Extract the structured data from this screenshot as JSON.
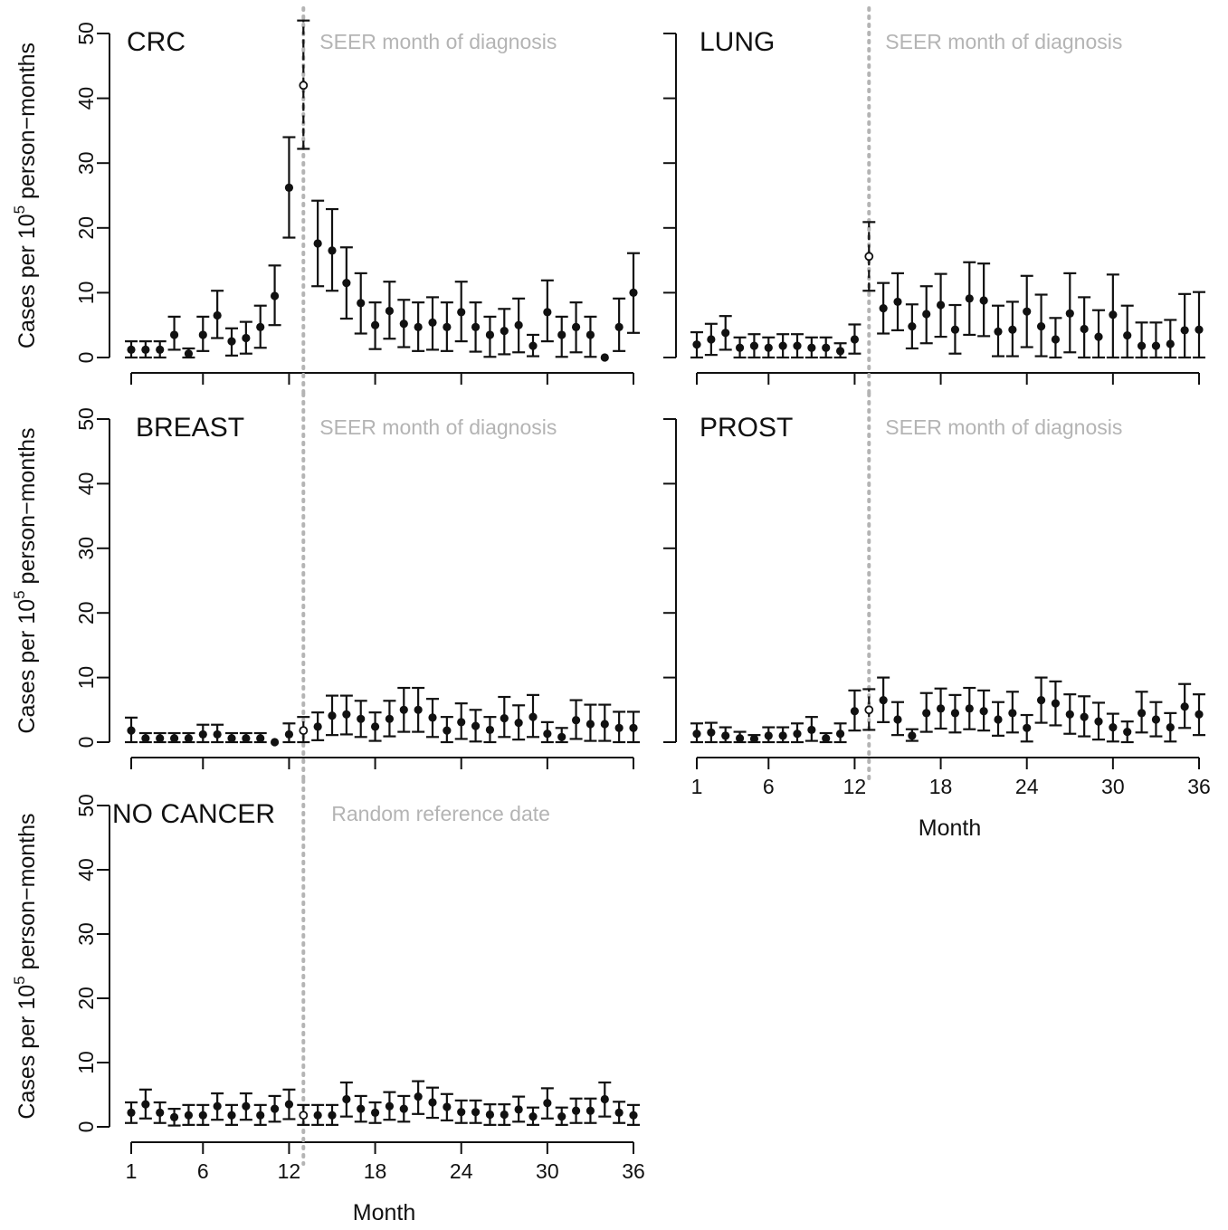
{
  "chart_data": [
    {
      "type": "scatter",
      "title": "CRC",
      "annotation": "SEER month of diagnosis",
      "reference_month": 13,
      "ylabel": "Cases per 10^5 person−months",
      "xlabel": "",
      "show_x_ticklabels": false,
      "ylim": [
        0,
        50
      ],
      "xlim": [
        1,
        36
      ],
      "y_ticks": [
        "0",
        "10",
        "20",
        "30",
        "40",
        "50"
      ],
      "x_ticks": [
        "1",
        "6",
        "12",
        "18",
        "24",
        "30",
        "36"
      ],
      "x": [
        1,
        2,
        3,
        4,
        5,
        6,
        7,
        8,
        9,
        10,
        11,
        12,
        13,
        14,
        15,
        16,
        17,
        18,
        19,
        20,
        21,
        22,
        23,
        24,
        25,
        26,
        27,
        28,
        29,
        30,
        31,
        32,
        33,
        34,
        35,
        36
      ],
      "values": [
        1.2,
        1.2,
        1.2,
        3.5,
        0.6,
        3.5,
        6.5,
        2.5,
        3.0,
        4.7,
        9.5,
        26.2,
        42.0,
        17.6,
        16.5,
        11.5,
        8.4,
        5.0,
        7.2,
        5.2,
        4.7,
        5.4,
        4.7,
        7.0,
        4.7,
        3.5,
        4.1,
        5.0,
        1.8,
        7.0,
        3.5,
        4.7,
        3.5,
        0.0,
        4.7,
        10.0
      ],
      "lower": [
        0.0,
        0.0,
        0.0,
        1.2,
        0.0,
        1.0,
        3.0,
        0.3,
        0.6,
        1.5,
        5.0,
        18.5,
        32.2,
        11.0,
        10.3,
        6.0,
        3.7,
        1.3,
        2.9,
        1.6,
        1.0,
        1.2,
        1.0,
        2.5,
        0.9,
        0.1,
        0.5,
        0.8,
        0.2,
        2.5,
        0.1,
        0.8,
        0.1,
        0.0,
        1.0,
        3.8
      ],
      "upper": [
        2.5,
        2.5,
        2.5,
        6.3,
        1.4,
        6.3,
        10.3,
        4.5,
        5.5,
        8.0,
        14.2,
        34.0,
        52.0,
        24.2,
        22.9,
        17.0,
        13.0,
        8.5,
        11.7,
        8.9,
        8.5,
        9.3,
        8.5,
        11.7,
        8.5,
        6.3,
        7.5,
        9.1,
        3.5,
        11.9,
        6.3,
        8.5,
        6.3,
        0.0,
        9.1,
        16.1
      ]
    },
    {
      "type": "scatter",
      "title": "LUNG",
      "annotation": "SEER month of diagnosis",
      "reference_month": 13,
      "ylabel": "",
      "xlabel": "",
      "show_x_ticklabels": false,
      "ylim": [
        0,
        50
      ],
      "xlim": [
        1,
        36
      ],
      "y_ticks": [
        "0",
        "10",
        "20",
        "30",
        "40",
        "50"
      ],
      "x_ticks": [
        "1",
        "6",
        "12",
        "18",
        "24",
        "30",
        "36"
      ],
      "x": [
        1,
        2,
        3,
        4,
        5,
        6,
        7,
        8,
        9,
        10,
        11,
        12,
        13,
        14,
        15,
        16,
        17,
        18,
        19,
        20,
        21,
        22,
        23,
        24,
        25,
        26,
        27,
        28,
        29,
        30,
        31,
        32,
        33,
        34,
        35,
        36
      ],
      "values": [
        2.0,
        2.8,
        3.8,
        1.5,
        1.8,
        1.5,
        1.8,
        1.8,
        1.5,
        1.5,
        1.0,
        2.8,
        15.6,
        7.6,
        8.6,
        4.8,
        6.7,
        8.1,
        4.3,
        9.1,
        8.8,
        4.0,
        4.3,
        7.1,
        4.8,
        2.8,
        6.8,
        4.4,
        3.2,
        6.6,
        3.4,
        1.8,
        1.8,
        2.1,
        4.2,
        4.3
      ],
      "lower": [
        0.0,
        0.4,
        1.2,
        0.0,
        0.0,
        0.0,
        0.0,
        0.0,
        0.0,
        0.0,
        0.0,
        0.6,
        10.3,
        3.7,
        4.2,
        1.4,
        2.2,
        3.2,
        0.6,
        3.5,
        3.3,
        0.2,
        0.2,
        1.6,
        0.2,
        0.0,
        0.8,
        0.0,
        0.0,
        0.0,
        0.0,
        0.0,
        0.0,
        0.0,
        0.0,
        0.0
      ],
      "upper": [
        3.9,
        5.2,
        6.4,
        3.1,
        3.6,
        3.1,
        3.6,
        3.6,
        3.1,
        3.1,
        2.2,
        5.1,
        20.9,
        11.5,
        13.0,
        8.2,
        11.0,
        12.9,
        8.1,
        14.7,
        14.5,
        8.0,
        8.6,
        12.6,
        9.7,
        6.1,
        13.0,
        9.3,
        7.3,
        12.8,
        8.0,
        5.4,
        5.4,
        5.8,
        9.8,
        10.1
      ]
    },
    {
      "type": "scatter",
      "title": "BREAST",
      "annotation": "SEER month of diagnosis",
      "reference_month": 13,
      "ylabel": "Cases per 10^5 person−months",
      "xlabel": "",
      "show_x_ticklabels": false,
      "ylim": [
        0,
        50
      ],
      "xlim": [
        1,
        36
      ],
      "y_ticks": [
        "0",
        "10",
        "20",
        "30",
        "40",
        "50"
      ],
      "x_ticks": [
        "1",
        "6",
        "12",
        "18",
        "24",
        "30",
        "36"
      ],
      "x": [
        1,
        2,
        3,
        4,
        5,
        6,
        7,
        8,
        9,
        10,
        11,
        12,
        13,
        14,
        15,
        16,
        17,
        18,
        19,
        20,
        21,
        22,
        23,
        24,
        25,
        26,
        27,
        28,
        29,
        30,
        31,
        32,
        33,
        34,
        35,
        36
      ],
      "values": [
        1.8,
        0.6,
        0.6,
        0.6,
        0.6,
        1.2,
        1.2,
        0.6,
        0.6,
        0.6,
        0.0,
        1.2,
        1.8,
        2.4,
        4.1,
        4.3,
        3.6,
        2.4,
        3.6,
        5.0,
        5.0,
        3.8,
        1.8,
        3.1,
        2.5,
        1.9,
        3.7,
        3.0,
        3.9,
        1.3,
        0.8,
        3.4,
        2.8,
        2.8,
        2.2,
        2.2
      ],
      "lower": [
        0.0,
        0.0,
        0.0,
        0.0,
        0.0,
        0.0,
        0.0,
        0.0,
        0.0,
        0.0,
        0.0,
        0.0,
        0.0,
        0.3,
        1.1,
        1.2,
        0.8,
        0.2,
        0.9,
        1.6,
        1.6,
        0.8,
        0.0,
        0.5,
        0.1,
        0.0,
        0.8,
        0.4,
        0.8,
        0.0,
        0.0,
        0.5,
        0.2,
        0.2,
        0.0,
        0.0
      ],
      "upper": [
        3.8,
        1.4,
        1.4,
        1.4,
        1.4,
        2.7,
        2.7,
        1.4,
        1.4,
        1.4,
        0.0,
        2.9,
        3.9,
        4.6,
        7.2,
        7.2,
        6.4,
        4.6,
        6.4,
        8.4,
        8.4,
        6.7,
        3.9,
        6.0,
        5.0,
        3.9,
        7.0,
        5.7,
        7.3,
        3.1,
        2.2,
        6.5,
        5.8,
        5.8,
        4.7,
        4.7
      ]
    },
    {
      "type": "scatter",
      "title": "PROST",
      "annotation": "SEER month of diagnosis",
      "reference_month": 13,
      "ylabel": "",
      "xlabel": "Month",
      "show_x_ticklabels": true,
      "ylim": [
        0,
        50
      ],
      "xlim": [
        1,
        36
      ],
      "y_ticks": [
        "0",
        "10",
        "20",
        "30",
        "40",
        "50"
      ],
      "x_ticks": [
        "1",
        "6",
        "12",
        "18",
        "24",
        "30",
        "36"
      ],
      "x": [
        1,
        2,
        3,
        4,
        5,
        6,
        7,
        8,
        9,
        10,
        11,
        12,
        13,
        14,
        15,
        16,
        17,
        18,
        19,
        20,
        21,
        22,
        23,
        24,
        25,
        26,
        27,
        28,
        29,
        30,
        31,
        32,
        33,
        34,
        35,
        36
      ],
      "values": [
        1.3,
        1.5,
        1.0,
        0.6,
        0.5,
        1.0,
        1.0,
        1.3,
        1.9,
        0.6,
        1.3,
        4.8,
        5.0,
        6.5,
        3.5,
        1.0,
        4.5,
        5.2,
        4.5,
        5.2,
        4.8,
        3.5,
        4.5,
        2.2,
        6.5,
        6.0,
        4.3,
        3.9,
        3.2,
        2.3,
        1.6,
        4.5,
        3.5,
        2.3,
        5.5,
        4.3
      ],
      "lower": [
        0.0,
        0.0,
        0.0,
        0.0,
        0.0,
        0.0,
        0.0,
        0.0,
        0.2,
        0.0,
        0.0,
        1.8,
        1.9,
        3.1,
        1.1,
        0.2,
        1.6,
        2.1,
        1.5,
        2.0,
        1.8,
        1.0,
        1.5,
        0.1,
        3.0,
        2.6,
        1.3,
        0.9,
        0.4,
        0.1,
        0.0,
        1.5,
        0.9,
        0.1,
        2.2,
        1.1
      ],
      "upper": [
        2.9,
        3.0,
        2.3,
        1.6,
        1.1,
        2.3,
        2.3,
        2.9,
        3.9,
        1.4,
        2.9,
        8.0,
        8.2,
        10.0,
        6.2,
        2.0,
        7.6,
        8.3,
        7.3,
        8.4,
        8.0,
        6.2,
        7.8,
        4.2,
        10.0,
        9.4,
        7.4,
        7.1,
        6.1,
        4.4,
        3.2,
        7.8,
        6.2,
        4.5,
        9.0,
        7.4
      ]
    },
    {
      "type": "scatter",
      "title": "NO CANCER",
      "annotation": "Random reference date",
      "reference_month": 13,
      "ylabel": "Cases per 10^5 person−months",
      "xlabel": "Month",
      "show_x_ticklabels": true,
      "ylim": [
        0,
        50
      ],
      "xlim": [
        1,
        36
      ],
      "y_ticks": [
        "0",
        "10",
        "20",
        "30",
        "40",
        "50"
      ],
      "x_ticks": [
        "1",
        "6",
        "12",
        "18",
        "24",
        "30",
        "36"
      ],
      "x": [
        1,
        2,
        3,
        4,
        5,
        6,
        7,
        8,
        9,
        10,
        11,
        12,
        13,
        14,
        15,
        16,
        17,
        18,
        19,
        20,
        21,
        22,
        23,
        24,
        25,
        26,
        27,
        28,
        29,
        30,
        31,
        32,
        33,
        34,
        35,
        36
      ],
      "values": [
        2.2,
        3.5,
        2.2,
        1.5,
        1.8,
        1.8,
        3.2,
        1.8,
        3.2,
        1.8,
        2.8,
        3.5,
        1.8,
        1.8,
        1.8,
        4.3,
        2.8,
        2.2,
        3.2,
        2.8,
        4.7,
        3.8,
        3.1,
        2.3,
        2.3,
        1.9,
        1.9,
        2.7,
        1.6,
        3.7,
        1.6,
        2.5,
        2.5,
        4.3,
        2.2,
        1.8
      ],
      "lower": [
        0.6,
        1.3,
        0.6,
        0.2,
        0.3,
        0.3,
        1.1,
        0.3,
        1.1,
        0.3,
        0.8,
        1.2,
        0.3,
        0.3,
        0.3,
        1.6,
        0.8,
        0.6,
        1.1,
        0.8,
        2.0,
        1.4,
        1.0,
        0.6,
        0.6,
        0.3,
        0.3,
        0.8,
        0.3,
        1.3,
        0.3,
        0.6,
        0.6,
        1.6,
        0.6,
        0.3
      ],
      "upper": [
        3.8,
        5.8,
        3.8,
        2.8,
        3.4,
        3.4,
        5.2,
        3.4,
        5.2,
        3.4,
        4.8,
        5.8,
        3.4,
        3.4,
        3.4,
        6.9,
        4.8,
        3.8,
        5.4,
        4.8,
        7.1,
        6.1,
        5.1,
        4.1,
        4.1,
        3.5,
        3.5,
        4.7,
        3.0,
        6.0,
        3.0,
        4.4,
        4.4,
        6.9,
        3.9,
        3.4
      ]
    }
  ]
}
